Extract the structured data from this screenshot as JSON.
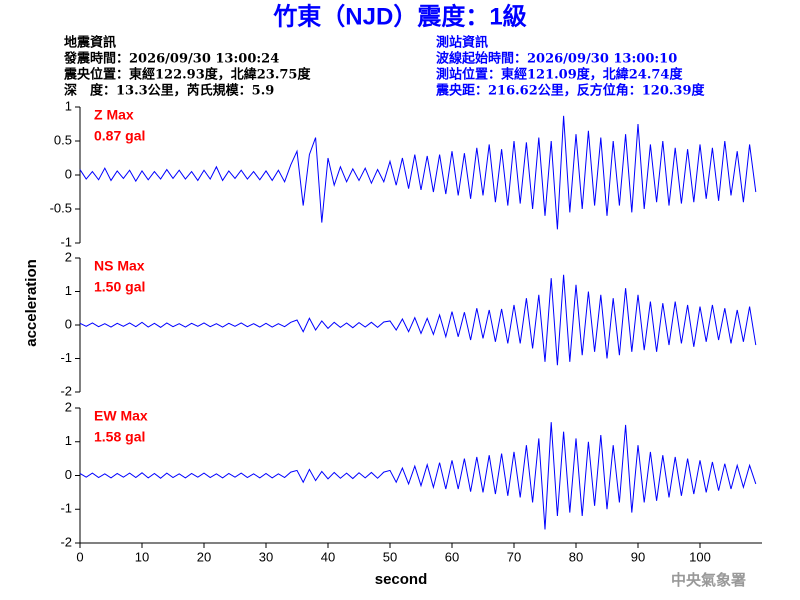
{
  "figure": {
    "title": "竹東（NJD）震度：1級",
    "ylabel": "acceleration",
    "credit": "中央氣象署"
  },
  "info": {
    "left": [
      "地震資訊",
      "發震時間：2026/09/30 13:00:24",
      "震央位置：東經122.93度，北緯23.75度",
      "深　度：13.3公里，芮氏規模：5.9"
    ],
    "right": [
      "測站資訊",
      "波線起始時間：2026/09/30 13:00:10",
      "測站位置：東經121.09度，北緯24.74度",
      "震央距：216.62公里，反方位角：120.39度"
    ]
  },
  "chart_data": [
    {
      "type": "line",
      "max_label": "0.87 gal",
      "xlim": [
        0,
        110
      ],
      "ylim": [
        -1,
        1
      ],
      "yticks": [
        -1,
        -0.5,
        0,
        0.5,
        1
      ],
      "x": [
        0,
        1,
        2,
        3,
        4,
        5,
        6,
        7,
        8,
        9,
        10,
        11,
        12,
        13,
        14,
        15,
        16,
        17,
        18,
        19,
        20,
        21,
        22,
        23,
        24,
        25,
        26,
        27,
        28,
        29,
        30,
        31,
        32,
        33,
        34,
        35,
        36,
        37,
        38,
        39,
        40,
        41,
        42,
        43,
        44,
        45,
        46,
        47,
        48,
        49,
        50,
        51,
        52,
        53,
        54,
        55,
        56,
        57,
        58,
        59,
        60,
        61,
        62,
        63,
        64,
        65,
        66,
        67,
        68,
        69,
        70,
        71,
        72,
        73,
        74,
        75,
        76,
        77,
        78,
        79,
        80,
        81,
        82,
        83,
        84,
        85,
        86,
        87,
        88,
        89,
        90,
        91,
        92,
        93,
        94,
        95,
        96,
        97,
        98,
        99,
        100,
        101,
        102,
        103,
        104,
        105,
        106,
        107,
        108,
        109
      ],
      "series": [
        {
          "name": "Z Max",
          "color": "#0000ff",
          "values": [
            0.08,
            -0.06,
            0.05,
            -0.07,
            0.1,
            -0.08,
            0.06,
            -0.05,
            0.07,
            -0.09,
            0.06,
            -0.07,
            0.05,
            -0.06,
            0.08,
            -0.05,
            0.07,
            -0.06,
            0.05,
            -0.08,
            0.07,
            -0.06,
            0.12,
            -0.08,
            0.06,
            -0.05,
            0.07,
            -0.06,
            0.05,
            -0.07,
            0.06,
            -0.08,
            0.07,
            -0.1,
            0.15,
            0.35,
            -0.45,
            0.3,
            0.55,
            -0.7,
            0.25,
            -0.15,
            0.12,
            -0.1,
            0.09,
            -0.08,
            0.1,
            -0.12,
            0.08,
            -0.1,
            0.2,
            -0.15,
            0.25,
            -0.2,
            0.3,
            -0.22,
            0.28,
            -0.25,
            0.3,
            -0.28,
            0.35,
            -0.3,
            0.32,
            -0.35,
            0.4,
            -0.3,
            0.45,
            -0.4,
            0.38,
            -0.45,
            0.5,
            -0.42,
            0.48,
            -0.5,
            0.55,
            -0.6,
            0.5,
            -0.8,
            0.87,
            -0.55,
            0.6,
            -0.5,
            0.65,
            -0.45,
            0.55,
            -0.6,
            0.5,
            -0.45,
            0.6,
            -0.55,
            0.75,
            -0.5,
            0.45,
            -0.4,
            0.5,
            -0.45,
            0.4,
            -0.42,
            0.38,
            -0.4,
            0.45,
            -0.35,
            0.4,
            -0.38,
            0.5,
            -0.3,
            0.35,
            -0.4,
            0.45,
            -0.25
          ]
        }
      ]
    },
    {
      "type": "line",
      "max_label": "1.50 gal",
      "xlim": [
        0,
        110
      ],
      "ylim": [
        -2,
        2
      ],
      "yticks": [
        -2,
        -1,
        0,
        1,
        2
      ],
      "x": [
        0,
        1,
        2,
        3,
        4,
        5,
        6,
        7,
        8,
        9,
        10,
        11,
        12,
        13,
        14,
        15,
        16,
        17,
        18,
        19,
        20,
        21,
        22,
        23,
        24,
        25,
        26,
        27,
        28,
        29,
        30,
        31,
        32,
        33,
        34,
        35,
        36,
        37,
        38,
        39,
        40,
        41,
        42,
        43,
        44,
        45,
        46,
        47,
        48,
        49,
        50,
        51,
        52,
        53,
        54,
        55,
        56,
        57,
        58,
        59,
        60,
        61,
        62,
        63,
        64,
        65,
        66,
        67,
        68,
        69,
        70,
        71,
        72,
        73,
        74,
        75,
        76,
        77,
        78,
        79,
        80,
        81,
        82,
        83,
        84,
        85,
        86,
        87,
        88,
        89,
        90,
        91,
        92,
        93,
        94,
        95,
        96,
        97,
        98,
        99,
        100,
        101,
        102,
        103,
        104,
        105,
        106,
        107,
        108,
        109
      ],
      "series": [
        {
          "name": "NS Max",
          "color": "#0000ff",
          "values": [
            0.05,
            -0.04,
            0.06,
            -0.05,
            0.04,
            -0.06,
            0.05,
            -0.04,
            0.06,
            -0.05,
            0.08,
            -0.06,
            0.05,
            -0.07,
            0.06,
            -0.05,
            0.04,
            -0.06,
            0.05,
            -0.04,
            0.06,
            -0.05,
            0.04,
            -0.06,
            0.05,
            -0.04,
            0.06,
            -0.05,
            0.04,
            -0.06,
            0.05,
            -0.06,
            0.04,
            -0.05,
            0.08,
            0.15,
            -0.2,
            0.2,
            -0.15,
            0.12,
            -0.1,
            0.08,
            -0.07,
            0.06,
            -0.08,
            0.07,
            -0.06,
            0.08,
            -0.07,
            0.09,
            0.12,
            -0.15,
            0.18,
            -0.2,
            0.22,
            -0.25,
            0.2,
            -0.28,
            0.3,
            -0.35,
            0.4,
            -0.35,
            0.38,
            -0.45,
            0.5,
            -0.4,
            0.45,
            -0.5,
            0.48,
            -0.55,
            0.6,
            -0.55,
            0.8,
            -0.7,
            0.9,
            -1.1,
            1.4,
            -1.2,
            1.5,
            -1.1,
            1.2,
            -0.9,
            1.0,
            -0.8,
            0.9,
            -1.0,
            0.8,
            -0.9,
            1.1,
            -0.8,
            0.9,
            -0.75,
            0.7,
            -0.8,
            0.65,
            -0.6,
            0.7,
            -0.55,
            0.6,
            -0.65,
            0.55,
            -0.5,
            0.6,
            -0.45,
            0.5,
            -0.55,
            0.45,
            -0.5,
            0.55,
            -0.6
          ]
        }
      ]
    },
    {
      "type": "line",
      "max_label": "1.58 gal",
      "xlabel": "second",
      "xlim": [
        0,
        110
      ],
      "ylim": [
        -2,
        2
      ],
      "yticks": [
        -2,
        -1,
        0,
        1,
        2
      ],
      "xticks": [
        0,
        10,
        20,
        30,
        40,
        50,
        60,
        70,
        80,
        90,
        100
      ],
      "x": [
        0,
        1,
        2,
        3,
        4,
        5,
        6,
        7,
        8,
        9,
        10,
        11,
        12,
        13,
        14,
        15,
        16,
        17,
        18,
        19,
        20,
        21,
        22,
        23,
        24,
        25,
        26,
        27,
        28,
        29,
        30,
        31,
        32,
        33,
        34,
        35,
        36,
        37,
        38,
        39,
        40,
        41,
        42,
        43,
        44,
        45,
        46,
        47,
        48,
        49,
        50,
        51,
        52,
        53,
        54,
        55,
        56,
        57,
        58,
        59,
        60,
        61,
        62,
        63,
        64,
        65,
        66,
        67,
        68,
        69,
        70,
        71,
        72,
        73,
        74,
        75,
        76,
        77,
        78,
        79,
        80,
        81,
        82,
        83,
        84,
        85,
        86,
        87,
        88,
        89,
        90,
        91,
        92,
        93,
        94,
        95,
        96,
        97,
        98,
        99,
        100,
        101,
        102,
        103,
        104,
        105,
        106,
        107,
        108,
        109
      ],
      "series": [
        {
          "name": "EW Max",
          "color": "#0000ff",
          "values": [
            0.06,
            -0.05,
            0.07,
            -0.06,
            0.05,
            -0.07,
            0.06,
            -0.05,
            0.07,
            -0.06,
            0.08,
            -0.07,
            0.06,
            -0.08,
            0.07,
            -0.06,
            0.05,
            -0.07,
            0.06,
            -0.05,
            0.07,
            -0.06,
            0.05,
            -0.07,
            0.06,
            -0.05,
            0.07,
            -0.06,
            0.05,
            -0.07,
            0.06,
            -0.07,
            0.05,
            -0.06,
            0.1,
            0.15,
            -0.2,
            0.18,
            -0.15,
            0.12,
            -0.1,
            0.09,
            -0.08,
            0.07,
            -0.09,
            0.08,
            -0.07,
            0.09,
            -0.08,
            0.1,
            0.15,
            -0.2,
            0.22,
            -0.25,
            0.28,
            -0.3,
            0.32,
            -0.35,
            0.38,
            -0.4,
            0.45,
            -0.4,
            0.5,
            -0.48,
            0.55,
            -0.5,
            0.6,
            -0.55,
            0.65,
            -0.6,
            0.7,
            -0.65,
            0.9,
            -0.8,
            1.1,
            -1.6,
            1.58,
            -1.2,
            1.3,
            -1.1,
            1.1,
            -1.2,
            1.0,
            -0.9,
            1.2,
            -1.0,
            0.9,
            -0.8,
            1.5,
            -1.1,
            0.9,
            -0.8,
            0.7,
            -0.75,
            0.6,
            -0.65,
            0.55,
            -0.6,
            0.5,
            -0.55,
            0.45,
            -0.5,
            0.4,
            -0.45,
            0.35,
            -0.4,
            0.3,
            -0.35,
            0.3,
            -0.25
          ]
        }
      ]
    }
  ]
}
